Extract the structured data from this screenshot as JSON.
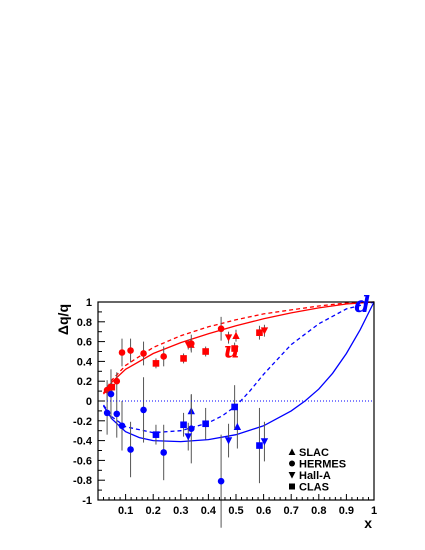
{
  "chart_data": {
    "type": "scatter",
    "xlabel": "x",
    "ylabel": "Δq/q",
    "xlim": [
      0,
      1
    ],
    "ylim": [
      -1,
      1
    ],
    "x_ticks": [
      "0.1",
      "0.2",
      "0.3",
      "0.4",
      "0.5",
      "0.6",
      "0.7",
      "0.8",
      "0.9",
      "1"
    ],
    "y_ticks": [
      "-1",
      "-0.8",
      "-0.6",
      "-0.4",
      "-0.2",
      "0",
      "0.2",
      "0.4",
      "0.6",
      "0.8",
      "1"
    ],
    "grid": false,
    "zero_line": true,
    "colors": {
      "u": "#ff0000",
      "d": "#0000ff",
      "axis": "#000000"
    },
    "curve_labels": [
      {
        "text": "u",
        "x": 0.455,
        "y": 0.44,
        "color": "#ff0000"
      },
      {
        "text": "d",
        "x": 0.93,
        "y": 0.9,
        "color": "#0000ff"
      }
    ],
    "curves": [
      {
        "flavor": "u",
        "style": "solid",
        "color": "#ff0000",
        "points": [
          [
            0.02,
            0.07
          ],
          [
            0.05,
            0.19
          ],
          [
            0.1,
            0.32
          ],
          [
            0.2,
            0.48
          ],
          [
            0.3,
            0.59
          ],
          [
            0.4,
            0.68
          ],
          [
            0.5,
            0.76
          ],
          [
            0.6,
            0.83
          ],
          [
            0.7,
            0.89
          ],
          [
            0.8,
            0.94
          ],
          [
            0.9,
            0.98
          ],
          [
            1.0,
            1.0
          ]
        ]
      },
      {
        "flavor": "u",
        "style": "dashed",
        "color": "#ff0000",
        "points": [
          [
            0.02,
            0.08
          ],
          [
            0.05,
            0.21
          ],
          [
            0.1,
            0.36
          ],
          [
            0.2,
            0.54
          ],
          [
            0.3,
            0.66
          ],
          [
            0.4,
            0.75
          ],
          [
            0.5,
            0.82
          ],
          [
            0.6,
            0.88
          ],
          [
            0.7,
            0.92
          ],
          [
            0.8,
            0.96
          ],
          [
            0.9,
            0.99
          ],
          [
            1.0,
            1.0
          ]
        ]
      },
      {
        "flavor": "d",
        "style": "solid",
        "color": "#0000ff",
        "points": [
          [
            0.02,
            -0.05
          ],
          [
            0.05,
            -0.18
          ],
          [
            0.1,
            -0.31
          ],
          [
            0.15,
            -0.37
          ],
          [
            0.2,
            -0.4
          ],
          [
            0.3,
            -0.41
          ],
          [
            0.4,
            -0.39
          ],
          [
            0.5,
            -0.34
          ],
          [
            0.6,
            -0.25
          ],
          [
            0.7,
            -0.1
          ],
          [
            0.75,
            0.0
          ],
          [
            0.8,
            0.12
          ],
          [
            0.85,
            0.28
          ],
          [
            0.9,
            0.48
          ],
          [
            0.95,
            0.72
          ],
          [
            1.0,
            1.0
          ]
        ]
      },
      {
        "flavor": "d",
        "style": "dashed",
        "color": "#0000ff",
        "points": [
          [
            0.02,
            -0.04
          ],
          [
            0.05,
            -0.16
          ],
          [
            0.1,
            -0.26
          ],
          [
            0.2,
            -0.32
          ],
          [
            0.3,
            -0.3
          ],
          [
            0.4,
            -0.22
          ],
          [
            0.45,
            -0.15
          ],
          [
            0.5,
            -0.05
          ],
          [
            0.55,
            0.1
          ],
          [
            0.6,
            0.27
          ],
          [
            0.65,
            0.42
          ],
          [
            0.7,
            0.57
          ],
          [
            0.8,
            0.78
          ],
          [
            0.9,
            0.93
          ],
          [
            1.0,
            1.0
          ]
        ]
      }
    ],
    "series": [
      {
        "name": "SLAC",
        "marker": "triangle-up",
        "points": [
          {
            "flavor": "u",
            "x": 0.337,
            "y": 0.57,
            "err": 0.06
          },
          {
            "flavor": "u",
            "x": 0.5,
            "y": 0.66,
            "err": 0.06
          },
          {
            "flavor": "d",
            "x": 0.338,
            "y": -0.1,
            "err": 0.16
          },
          {
            "flavor": "d",
            "x": 0.505,
            "y": -0.26,
            "err": 0.22
          }
        ]
      },
      {
        "name": "HERMES",
        "marker": "circle",
        "points": [
          {
            "flavor": "u",
            "x": 0.033,
            "y": 0.11,
            "err": 0.1
          },
          {
            "flavor": "u",
            "x": 0.047,
            "y": 0.14,
            "err": 0.09
          },
          {
            "flavor": "u",
            "x": 0.068,
            "y": 0.2,
            "err": 0.09
          },
          {
            "flavor": "u",
            "x": 0.087,
            "y": 0.49,
            "err": 0.14
          },
          {
            "flavor": "u",
            "x": 0.118,
            "y": 0.51,
            "err": 0.12
          },
          {
            "flavor": "u",
            "x": 0.165,
            "y": 0.48,
            "err": 0.12
          },
          {
            "flavor": "u",
            "x": 0.238,
            "y": 0.45,
            "err": 0.1
          },
          {
            "flavor": "u",
            "x": 0.338,
            "y": 0.58,
            "err": 0.09
          },
          {
            "flavor": "u",
            "x": 0.446,
            "y": 0.73,
            "err": 0.12
          },
          {
            "flavor": "d",
            "x": 0.033,
            "y": -0.12,
            "err": 0.22
          },
          {
            "flavor": "d",
            "x": 0.047,
            "y": 0.07,
            "err": 0.25
          },
          {
            "flavor": "d",
            "x": 0.068,
            "y": -0.13,
            "err": 0.24
          },
          {
            "flavor": "d",
            "x": 0.087,
            "y": -0.25,
            "err": 0.25
          },
          {
            "flavor": "d",
            "x": 0.118,
            "y": -0.49,
            "err": 0.28
          },
          {
            "flavor": "d",
            "x": 0.165,
            "y": -0.09,
            "err": 0.33
          },
          {
            "flavor": "d",
            "x": 0.238,
            "y": -0.52,
            "err": 0.28
          },
          {
            "flavor": "d",
            "x": 0.338,
            "y": -0.28,
            "err": 0.35
          },
          {
            "flavor": "d",
            "x": 0.446,
            "y": -0.81,
            "err": 0.47
          }
        ]
      },
      {
        "name": "Hall-A",
        "marker": "triangle-down",
        "points": [
          {
            "flavor": "u",
            "x": 0.327,
            "y": 0.57,
            "err": 0.05
          },
          {
            "flavor": "u",
            "x": 0.473,
            "y": 0.64,
            "err": 0.06
          },
          {
            "flavor": "u",
            "x": 0.603,
            "y": 0.71,
            "err": 0.06
          },
          {
            "flavor": "d",
            "x": 0.327,
            "y": -0.36,
            "err": 0.14
          },
          {
            "flavor": "d",
            "x": 0.473,
            "y": -0.4,
            "err": 0.17
          },
          {
            "flavor": "d",
            "x": 0.603,
            "y": -0.41,
            "err": 0.2
          }
        ]
      },
      {
        "name": "CLAS",
        "marker": "square",
        "points": [
          {
            "flavor": "u",
            "x": 0.05,
            "y": 0.14,
            "err": 0.04
          },
          {
            "flavor": "u",
            "x": 0.21,
            "y": 0.38,
            "err": 0.05
          },
          {
            "flavor": "u",
            "x": 0.31,
            "y": 0.43,
            "err": 0.05
          },
          {
            "flavor": "u",
            "x": 0.39,
            "y": 0.5,
            "err": 0.05
          },
          {
            "flavor": "u",
            "x": 0.495,
            "y": 0.53,
            "err": 0.06
          },
          {
            "flavor": "u",
            "x": 0.585,
            "y": 0.69,
            "err": 0.07
          },
          {
            "flavor": "d",
            "x": 0.21,
            "y": -0.34,
            "err": 0.1
          },
          {
            "flavor": "d",
            "x": 0.31,
            "y": -0.24,
            "err": 0.12
          },
          {
            "flavor": "d",
            "x": 0.39,
            "y": -0.23,
            "err": 0.16
          },
          {
            "flavor": "d",
            "x": 0.495,
            "y": -0.06,
            "err": 0.22
          },
          {
            "flavor": "d",
            "x": 0.585,
            "y": -0.45,
            "err": 0.38
          }
        ]
      }
    ],
    "legend": {
      "placement": "bottom-right",
      "entries": [
        {
          "label": "SLAC",
          "marker": "triangle-up"
        },
        {
          "label": "HERMES",
          "marker": "circle"
        },
        {
          "label": "Hall-A",
          "marker": "triangle-down"
        },
        {
          "label": "CLAS",
          "marker": "square"
        }
      ]
    }
  }
}
